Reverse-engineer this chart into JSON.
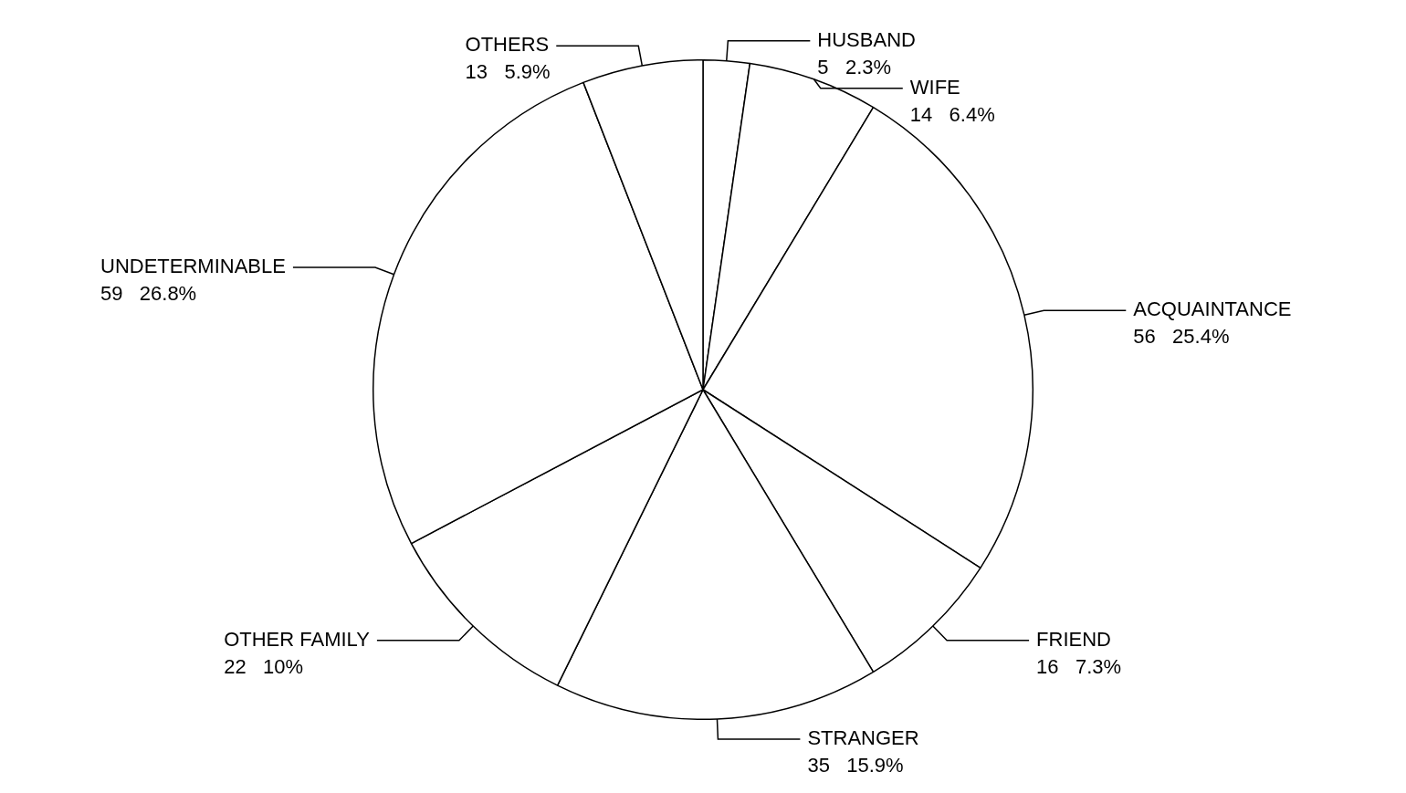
{
  "chart_data": {
    "type": "pie",
    "categories": [
      "HUSBAND",
      "WIFE",
      "ACQUAINTANCE",
      "FRIEND",
      "STRANGER",
      "OTHER FAMILY",
      "UNDETERMINABLE",
      "OTHERS"
    ],
    "values": [
      5,
      14,
      56,
      16,
      35,
      22,
      59,
      13
    ],
    "value_labels": [
      "5   2.3%",
      "14   6.4%",
      "56   25.4%",
      "16   7.3%",
      "35   15.9%",
      "22   10%",
      "59   26.8%",
      "13   5.9%"
    ],
    "colors": [
      "#ffffff",
      "#ffffff",
      "#ffffff",
      "#ffffff",
      "#ffffff",
      "#ffffff",
      "#ffffff",
      "#ffffff"
    ]
  }
}
